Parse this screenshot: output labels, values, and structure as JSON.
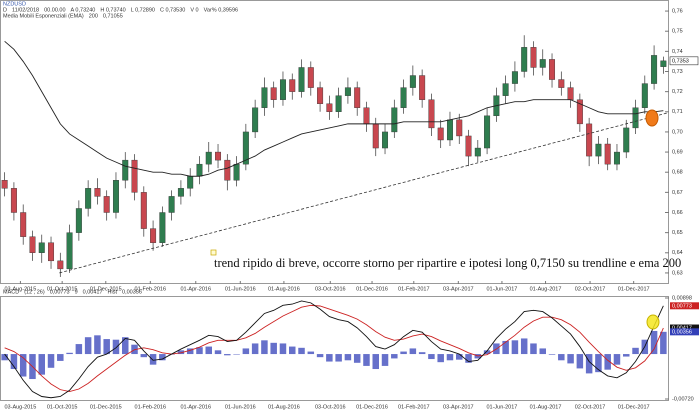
{
  "header": {
    "symbol": "NZDUSD",
    "quote": [
      "D",
      "11/02/2018",
      "00.00.00",
      "A 0,73240",
      "H 0,73740",
      "L 0,72890",
      "C 0,73530",
      "V 0",
      "Var% 0,39596"
    ],
    "indicator": [
      "Media Mobili Esponenziali (EMA)",
      "200",
      "0,71055"
    ]
  },
  "chart_data": [
    {
      "type": "candlestick",
      "open": [
        0.676,
        0.672,
        0.66,
        0.648,
        0.64,
        0.645,
        0.636,
        0.632,
        0.65,
        0.662,
        0.672,
        0.668,
        0.66,
        0.676,
        0.686,
        0.67,
        0.652,
        0.645,
        0.66,
        0.668,
        0.672,
        0.678,
        0.684,
        0.69,
        0.686,
        0.676,
        0.684,
        0.7,
        0.712,
        0.722,
        0.716,
        0.726,
        0.72,
        0.732,
        0.722,
        0.714,
        0.71,
        0.718,
        0.722,
        0.712,
        0.704,
        0.692,
        0.7,
        0.712,
        0.722,
        0.728,
        0.716,
        0.702,
        0.696,
        0.706,
        0.698,
        0.688,
        0.692,
        0.708,
        0.718,
        0.724,
        0.73,
        0.742,
        0.732,
        0.736,
        0.726,
        0.722,
        0.716,
        0.704,
        0.688,
        0.694,
        0.684,
        0.69,
        0.702,
        0.712,
        0.724,
        0.7324
      ],
      "high": [
        0.68,
        0.675,
        0.664,
        0.651,
        0.649,
        0.648,
        0.64,
        0.654,
        0.666,
        0.676,
        0.677,
        0.671,
        0.68,
        0.69,
        0.689,
        0.673,
        0.656,
        0.663,
        0.671,
        0.676,
        0.682,
        0.688,
        0.695,
        0.694,
        0.689,
        0.688,
        0.704,
        0.716,
        0.727,
        0.725,
        0.73,
        0.729,
        0.736,
        0.735,
        0.725,
        0.718,
        0.722,
        0.727,
        0.725,
        0.715,
        0.707,
        0.704,
        0.716,
        0.726,
        0.733,
        0.731,
        0.719,
        0.706,
        0.71,
        0.709,
        0.701,
        0.696,
        0.712,
        0.722,
        0.728,
        0.735,
        0.748,
        0.745,
        0.741,
        0.739,
        0.73,
        0.725,
        0.719,
        0.707,
        0.698,
        0.697,
        0.694,
        0.706,
        0.716,
        0.728,
        0.743,
        0.7374
      ],
      "low": [
        0.668,
        0.656,
        0.644,
        0.636,
        0.635,
        0.632,
        0.628,
        0.63,
        0.646,
        0.658,
        0.664,
        0.656,
        0.657,
        0.672,
        0.666,
        0.648,
        0.641,
        0.643,
        0.656,
        0.664,
        0.668,
        0.674,
        0.68,
        0.682,
        0.671,
        0.673,
        0.681,
        0.697,
        0.708,
        0.712,
        0.713,
        0.716,
        0.717,
        0.718,
        0.71,
        0.706,
        0.707,
        0.714,
        0.708,
        0.7,
        0.688,
        0.689,
        0.697,
        0.709,
        0.718,
        0.712,
        0.698,
        0.692,
        0.693,
        0.694,
        0.683,
        0.685,
        0.689,
        0.705,
        0.714,
        0.72,
        0.727,
        0.728,
        0.728,
        0.722,
        0.718,
        0.712,
        0.7,
        0.683,
        0.684,
        0.681,
        0.681,
        0.687,
        0.699,
        0.709,
        0.721,
        0.7289
      ],
      "close": [
        0.672,
        0.66,
        0.648,
        0.64,
        0.645,
        0.636,
        0.632,
        0.65,
        0.662,
        0.672,
        0.668,
        0.66,
        0.676,
        0.686,
        0.67,
        0.652,
        0.645,
        0.66,
        0.668,
        0.672,
        0.678,
        0.684,
        0.69,
        0.686,
        0.676,
        0.684,
        0.7,
        0.712,
        0.722,
        0.716,
        0.726,
        0.72,
        0.732,
        0.722,
        0.714,
        0.71,
        0.718,
        0.722,
        0.712,
        0.704,
        0.692,
        0.7,
        0.712,
        0.722,
        0.728,
        0.716,
        0.702,
        0.696,
        0.706,
        0.698,
        0.688,
        0.692,
        0.708,
        0.718,
        0.724,
        0.73,
        0.742,
        0.732,
        0.736,
        0.726,
        0.722,
        0.716,
        0.704,
        0.688,
        0.694,
        0.684,
        0.69,
        0.702,
        0.712,
        0.724,
        0.738,
        0.7353
      ],
      "up_color": "#2f7d4f",
      "down_color": "#c8474f",
      "ema": {
        "color": "#222222",
        "values": [
          0.745,
          0.741,
          0.735,
          0.728,
          0.72,
          0.712,
          0.704,
          0.699,
          0.696,
          0.693,
          0.69,
          0.687,
          0.685,
          0.683,
          0.682,
          0.681,
          0.68,
          0.68,
          0.679,
          0.679,
          0.678,
          0.678,
          0.679,
          0.681,
          0.682,
          0.684,
          0.686,
          0.688,
          0.691,
          0.693,
          0.695,
          0.697,
          0.699,
          0.7,
          0.701,
          0.702,
          0.703,
          0.704,
          0.704,
          0.704,
          0.704,
          0.704,
          0.704,
          0.705,
          0.705,
          0.705,
          0.705,
          0.705,
          0.706,
          0.707,
          0.708,
          0.71,
          0.712,
          0.713,
          0.714,
          0.715,
          0.715,
          0.716,
          0.716,
          0.716,
          0.716,
          0.716,
          0.714,
          0.712,
          0.71,
          0.709,
          0.709,
          0.709,
          0.709,
          0.71,
          0.71,
          0.71055
        ]
      },
      "trendline": {
        "x": [
          6.4,
          72
        ],
        "y": [
          0.63,
          0.7095
        ]
      },
      "annotation": "trend ripido di breve, occorre storno per ripartire e ipotesi long 0,7150 su trendline e ema 200",
      "price_tag": {
        "value": 0.7353,
        "label": "0,7353"
      },
      "xlim": [
        0,
        72
      ],
      "xticks": [
        {
          "value": 2.2,
          "label": "03-Aug-2015"
        },
        {
          "value": 6.7,
          "label": "01-Oct-2015"
        },
        {
          "value": 11.4,
          "label": "01-Dec-2015"
        },
        {
          "value": 16.2,
          "label": "01-Feb-2016"
        },
        {
          "value": 21.1,
          "label": "01-Apr-2016"
        },
        {
          "value": 25.9,
          "label": "01-Jun-2016"
        },
        {
          "value": 30.6,
          "label": "01-Aug-2016"
        },
        {
          "value": 35.6,
          "label": "03-Oct-2016"
        },
        {
          "value": 40.1,
          "label": "01-Dec-2016"
        },
        {
          "value": 44.6,
          "label": "01-Feb-2017"
        },
        {
          "value": 49.4,
          "label": "03-Apr-2017"
        },
        {
          "value": 54.1,
          "label": "01-Jun-2017"
        },
        {
          "value": 58.8,
          "label": "01-Aug-2017"
        },
        {
          "value": 63.6,
          "label": "02-Oct-2017"
        },
        {
          "value": 68.3,
          "label": "01-Dec-2017"
        }
      ],
      "ylim": [
        0.625,
        0.765
      ],
      "yticks": [
        {
          "value": 0.76,
          "label": "0,76"
        },
        {
          "value": 0.75,
          "label": "0,75"
        },
        {
          "value": 0.74,
          "label": "0,74"
        },
        {
          "value": 0.73,
          "label": "0,73"
        },
        {
          "value": 0.72,
          "label": "0,72"
        },
        {
          "value": 0.71,
          "label": "0,71"
        },
        {
          "value": 0.7,
          "label": "0,70"
        },
        {
          "value": 0.69,
          "label": "0,69"
        },
        {
          "value": 0.68,
          "label": "0,68"
        },
        {
          "value": 0.67,
          "label": "0,67"
        },
        {
          "value": 0.66,
          "label": "0,66"
        },
        {
          "value": 0.65,
          "label": "0,65"
        },
        {
          "value": 0.64,
          "label": "0,64"
        },
        {
          "value": 0.63,
          "label": "0,63"
        }
      ]
    },
    {
      "type": "macd",
      "title": [
        "MACD",
        "(12 , 26)",
        "0,00773",
        "9",
        "0,00417",
        "Hist",
        "0,00356"
      ],
      "macd": {
        "color": "#111111",
        "values": [
          0.0,
          -0.002,
          -0.0042,
          -0.006,
          -0.0068,
          -0.007,
          -0.0068,
          -0.0058,
          -0.004,
          -0.002,
          -0.0005,
          0.0,
          0.001,
          0.0025,
          0.0022,
          0.0005,
          -0.001,
          -0.0008,
          0.0,
          0.0008,
          0.0015,
          0.0022,
          0.003,
          0.0028,
          0.002,
          0.0022,
          0.0035,
          0.005,
          0.0065,
          0.007,
          0.0078,
          0.008,
          0.0085,
          0.0082,
          0.0072,
          0.006,
          0.0055,
          0.0052,
          0.0042,
          0.0028,
          0.0012,
          0.0008,
          0.0015,
          0.0028,
          0.0038,
          0.0035,
          0.002,
          0.0008,
          0.0005,
          0.0,
          -0.0012,
          -0.001,
          0.0005,
          0.0025,
          0.004,
          0.0052,
          0.0068,
          0.007,
          0.0068,
          0.0058,
          0.0045,
          0.0032,
          0.0012,
          -0.0012,
          -0.0025,
          -0.0035,
          -0.0038,
          -0.003,
          -0.0012,
          0.0012,
          0.0045,
          0.00773
        ]
      },
      "signal": {
        "color": "#cc2222",
        "values": [
          0.001,
          0.0004,
          -0.0006,
          -0.002,
          -0.0035,
          -0.0048,
          -0.0057,
          -0.006,
          -0.0056,
          -0.0047,
          -0.0035,
          -0.0024,
          -0.0013,
          -0.0002,
          0.0007,
          0.001,
          0.0007,
          0.0002,
          0.0,
          0.0002,
          0.0006,
          0.0011,
          0.0018,
          0.0022,
          0.0022,
          0.0022,
          0.0026,
          0.0033,
          0.0043,
          0.0052,
          0.0061,
          0.0068,
          0.0075,
          0.0078,
          0.0077,
          0.0072,
          0.0067,
          0.0062,
          0.0056,
          0.0047,
          0.0036,
          0.0027,
          0.0022,
          0.0024,
          0.0029,
          0.0032,
          0.0028,
          0.0021,
          0.0015,
          0.0009,
          0.0002,
          -0.0003,
          -0.0001,
          0.0008,
          0.0019,
          0.003,
          0.0043,
          0.0053,
          0.0059,
          0.0059,
          0.0055,
          0.0047,
          0.0035,
          0.0019,
          0.0004,
          -0.001,
          -0.0021,
          -0.0026,
          -0.0022,
          -0.0011,
          0.0008,
          0.00417
        ]
      },
      "hist": {
        "color": "#3340b8",
        "values": [
          -0.001,
          -0.0024,
          -0.0036,
          -0.004,
          -0.0033,
          -0.0022,
          -0.0011,
          0.0002,
          0.0016,
          0.0027,
          0.003,
          0.0024,
          0.0023,
          0.0027,
          0.0015,
          -0.0005,
          -0.0017,
          -0.001,
          0.0,
          0.0006,
          0.0009,
          0.0011,
          0.0012,
          0.0006,
          -0.0002,
          0.0,
          0.0009,
          0.0017,
          0.0022,
          0.0018,
          0.0017,
          0.0012,
          0.001,
          0.0004,
          -0.0005,
          -0.0012,
          -0.0012,
          -0.001,
          -0.0014,
          -0.0019,
          -0.0024,
          -0.0019,
          -0.0007,
          0.0004,
          0.0009,
          0.0003,
          -0.0008,
          -0.0013,
          -0.001,
          -0.0009,
          -0.0014,
          -0.0007,
          0.0006,
          0.0017,
          0.0021,
          0.0022,
          0.0025,
          0.0017,
          0.0009,
          -0.0001,
          -0.001,
          -0.0015,
          -0.0023,
          -0.0031,
          -0.0029,
          -0.0025,
          -0.0017,
          -0.0004,
          0.001,
          0.0023,
          0.0037,
          0.00356
        ]
      },
      "tags": [
        {
          "value": 0.00773,
          "label": "0,00773",
          "color": "#cc2222"
        },
        {
          "value": 0.00417,
          "label": "0,00417",
          "color": "#111111"
        },
        {
          "value": 0.00356,
          "label": "0,00356",
          "color": "#3340b8"
        }
      ],
      "ylim": [
        -0.0072,
        0.00898
      ],
      "yticks": [
        {
          "value": 0.00898,
          "label": "0,00898"
        },
        {
          "value": -0.0072,
          "label": "-0,00720"
        }
      ]
    }
  ]
}
